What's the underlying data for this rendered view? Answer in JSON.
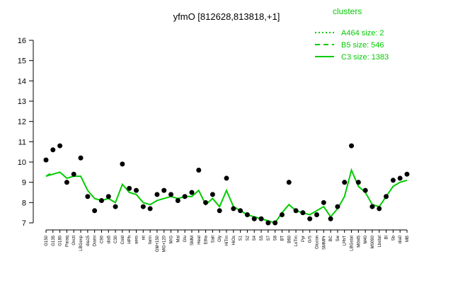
{
  "chart_data": {
    "type": "line",
    "title": "yfmO [812628,813818,+1]",
    "legend_title": "clusters",
    "categories": [
      "G150",
      "G135",
      "G180",
      "Paraq",
      "Oxctl",
      "LBGexp",
      "dia15",
      "Diami",
      "C90",
      "dia5",
      "C30",
      "Cold",
      "HPh",
      "aero",
      "nit",
      "ferm",
      "GM+150",
      "MG+120",
      "M/G",
      "Mal",
      "Glu",
      "SMM",
      "Heat",
      "Etha",
      "Salt",
      "Gly",
      "HiTm",
      "HiOs",
      "S1",
      "S2",
      "S4",
      "S5",
      "S7",
      "S8",
      "BT",
      "B60",
      "LoTm",
      "Pyr",
      "G/S",
      "Glucon",
      "SMMPr",
      "BC",
      "Sw",
      "LPhT",
      "LBGstat",
      "M0t45",
      "M40",
      "M0090",
      "Lbstat",
      "Bl",
      "Sb",
      "dia0",
      "MB"
    ],
    "values": [
      10.1,
      10.6,
      10.8,
      9.0,
      9.4,
      10.2,
      8.3,
      7.6,
      8.1,
      8.3,
      7.8,
      9.9,
      8.7,
      8.6,
      7.8,
      7.7,
      8.4,
      8.6,
      8.4,
      8.1,
      8.3,
      8.5,
      9.6,
      8.0,
      8.4,
      7.6,
      9.2,
      7.7,
      7.6,
      7.4,
      7.2,
      7.2,
      7.0,
      7.0,
      7.4,
      9.0,
      7.6,
      7.5,
      7.2,
      7.4,
      8.0,
      7.2,
      7.8,
      9.0,
      10.8,
      9.0,
      8.6,
      7.8,
      7.7,
      8.3,
      9.1,
      9.2,
      9.4
    ],
    "point_color": "#000000",
    "series": [
      {
        "name": "A464 size: 2",
        "color": "#00cc00",
        "dash": "dotted",
        "values": [
          null,
          null,
          null,
          null,
          null,
          null,
          null,
          null,
          null,
          null,
          null,
          null,
          null,
          null,
          null,
          null,
          null,
          null,
          null,
          null,
          null,
          null,
          null,
          null,
          null,
          null,
          null,
          null,
          null,
          null,
          null,
          null,
          null,
          null,
          null,
          null,
          null,
          null,
          null,
          null,
          null,
          null,
          null,
          null,
          null,
          null,
          null,
          null,
          null,
          null,
          null,
          null,
          null
        ]
      },
      {
        "name": "B5 size: 546",
        "color": "#00cc00",
        "dash": "dashed",
        "values": [
          9.3,
          9.5,
          null,
          null,
          null,
          null,
          null,
          null,
          null,
          null,
          null,
          null,
          null,
          null,
          null,
          null,
          null,
          null,
          null,
          null,
          null,
          null,
          null,
          null,
          null,
          null,
          null,
          null,
          null,
          null,
          null,
          null,
          null,
          null,
          null,
          null,
          null,
          null,
          null,
          null,
          null,
          null,
          null,
          null,
          null,
          null,
          null,
          null,
          null,
          null,
          null,
          null,
          null
        ]
      },
      {
        "name": "C3 size: 1383",
        "color": "#00cc00",
        "dash": "solid",
        "values": [
          9.3,
          9.4,
          9.5,
          9.2,
          9.3,
          9.3,
          8.6,
          8.2,
          8.1,
          8.2,
          8.0,
          8.9,
          8.5,
          8.4,
          8.0,
          7.9,
          8.1,
          8.2,
          8.3,
          8.2,
          8.3,
          8.3,
          8.6,
          7.9,
          8.2,
          7.8,
          8.6,
          7.8,
          7.6,
          7.4,
          7.3,
          7.2,
          7.1,
          7.0,
          7.5,
          7.9,
          7.6,
          7.5,
          7.4,
          7.6,
          7.8,
          7.3,
          7.7,
          8.3,
          9.6,
          8.8,
          8.5,
          7.9,
          7.8,
          8.3,
          8.8,
          9.0,
          9.1
        ]
      }
    ],
    "ylim": [
      7,
      16
    ],
    "yticks": [
      7,
      8,
      9,
      10,
      11,
      12,
      13,
      14,
      15,
      16
    ]
  }
}
